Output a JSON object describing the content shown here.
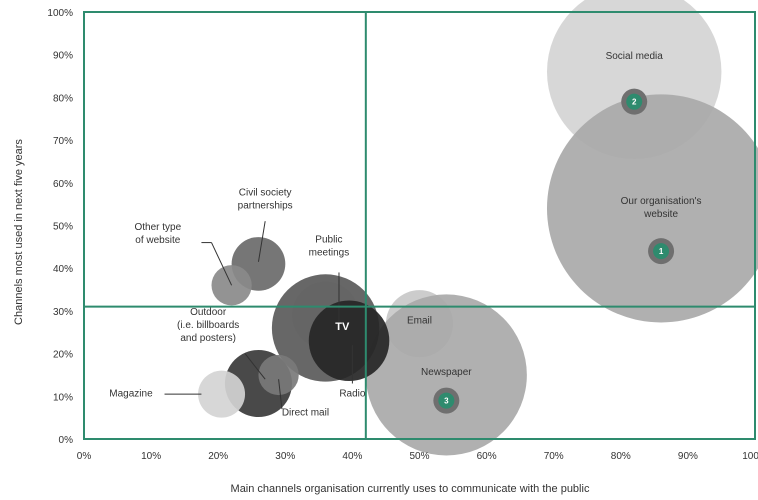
{
  "chart_data": {
    "type": "scatter",
    "xlabel": "Main channels organisation currently uses to communicate with the public",
    "ylabel": "Channels most used in next five years",
    "xlim": [
      0,
      100
    ],
    "ylim": [
      0,
      100
    ],
    "xticks": [
      "0%",
      "10%",
      "20%",
      "30%",
      "40%",
      "50%",
      "60%",
      "70%",
      "80%",
      "90%",
      "100%"
    ],
    "yticks": [
      "0%",
      "10%",
      "20%",
      "30%",
      "40%",
      "50%",
      "60%",
      "70%",
      "80%",
      "90%",
      "100%"
    ],
    "quadrant_lines": {
      "x": 42,
      "y": 31
    },
    "grid": false,
    "colors": {
      "frame": "#2e8b6e",
      "rank_badge": "#2e8b6e",
      "light_bubble": "#d4d4d4",
      "mid_bubble": "#a9a9a9",
      "dark_bubble": "#555555",
      "darkest_bubble": "#262626"
    },
    "points": [
      {
        "label": "Social media",
        "x": 82,
        "y": 86,
        "size": 13,
        "color": "#d4d4d4",
        "rank": "2",
        "rank_y": 79
      },
      {
        "label": "Our organisation's website",
        "x": 86,
        "y": 54,
        "size": 17,
        "color": "#a9a9a9",
        "rank": "1",
        "rank_y": 44
      },
      {
        "label": "Email",
        "x": 50,
        "y": 27,
        "size": 5,
        "color": "#c8c8c8"
      },
      {
        "label": "Newspaper",
        "x": 54,
        "y": 15,
        "size": 12,
        "color": "#a9a9a9",
        "rank": "3",
        "rank_y": 9
      },
      {
        "label": "Public meetings",
        "x": 36,
        "y": 29,
        "size": 5,
        "color": "#dcdcdc"
      },
      {
        "label": "TV",
        "x": 36,
        "y": 26,
        "size": 8,
        "color": "#5a5a5a"
      },
      {
        "label": "Radio",
        "x": 39.5,
        "y": 23,
        "size": 6,
        "color": "#262626"
      },
      {
        "label": "Civil society partnerships",
        "x": 26,
        "y": 41,
        "size": 4,
        "color": "#6a6a6a"
      },
      {
        "label": "Other type of website",
        "x": 22,
        "y": 36,
        "size": 3,
        "color": "#8a8a8a"
      },
      {
        "label": "Outdoor (i.e. billboards and posters)",
        "x": 26,
        "y": 13,
        "size": 5,
        "color": "#3a3a3a"
      },
      {
        "label": "Direct mail",
        "x": 29,
        "y": 15,
        "size": 3,
        "color": "#7a7a7a"
      },
      {
        "label": "Magazine",
        "x": 20.5,
        "y": 10.5,
        "size": 3.5,
        "color": "#d4d4d4"
      }
    ]
  }
}
